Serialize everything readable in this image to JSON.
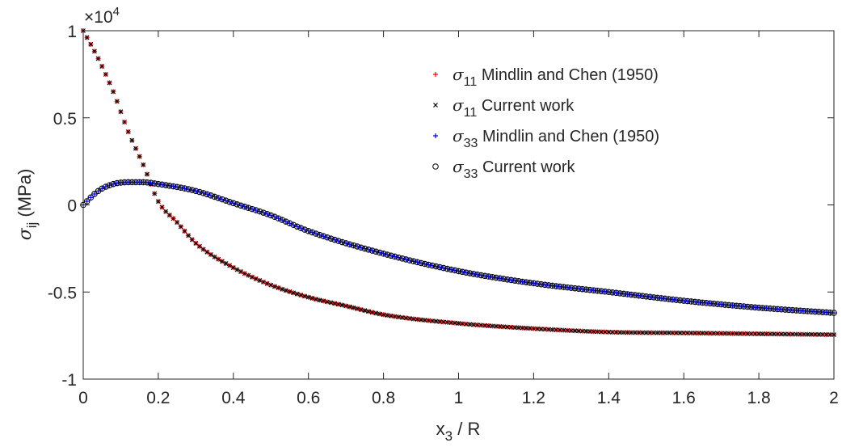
{
  "chart_data": {
    "type": "scatter",
    "xlabel": {
      "main": "x",
      "sub": "3",
      "rest": " / R"
    },
    "ylabel": {
      "main": "σ",
      "sub": "ij",
      "rest": " (MPa)"
    },
    "exponent": {
      "base": "×10",
      "power": "4"
    },
    "xlim": [
      0,
      2
    ],
    "ylim": [
      -10000,
      10000
    ],
    "xticks": [
      0,
      0.2,
      0.4,
      0.6,
      0.8,
      1,
      1.2,
      1.4,
      1.6,
      1.8,
      2
    ],
    "xtick_labels": [
      "0",
      "0.2",
      "0.4",
      "0.6",
      "0.8",
      "1",
      "1.2",
      "1.4",
      "1.6",
      "1.8",
      "2"
    ],
    "yticks": [
      -10000,
      -5000,
      0,
      5000,
      10000
    ],
    "ytick_labels": [
      "-1",
      "-0.5",
      "0",
      "0.5",
      "1"
    ],
    "grid": false,
    "legend_position": "top-right",
    "series": [
      {
        "name": {
          "sym": "σ",
          "sub": "11",
          "text": " Mindlin and Chen (1950)"
        },
        "marker": "plus",
        "color": "#ff0000",
        "anchors": [
          [
            0.0,
            10000
          ],
          [
            0.04,
            8400
          ],
          [
            0.08,
            6500
          ],
          [
            0.12,
            4200
          ],
          [
            0.16,
            2300
          ],
          [
            0.2,
            200
          ],
          [
            0.25,
            -1000
          ],
          [
            0.3,
            -2200
          ],
          [
            0.4,
            -3600
          ],
          [
            0.5,
            -4600
          ],
          [
            0.6,
            -5300
          ],
          [
            0.7,
            -5800
          ],
          [
            0.8,
            -6300
          ],
          [
            1.0,
            -6800
          ],
          [
            1.2,
            -7100
          ],
          [
            1.4,
            -7300
          ],
          [
            1.6,
            -7350
          ],
          [
            1.8,
            -7400
          ],
          [
            2.0,
            -7450
          ]
        ]
      },
      {
        "name": {
          "sym": "σ",
          "sub": "11",
          "text": " Current work"
        },
        "marker": "x",
        "color": "#000000",
        "anchors": [
          [
            0.0,
            10000
          ],
          [
            0.04,
            8400
          ],
          [
            0.08,
            6500
          ],
          [
            0.12,
            4200
          ],
          [
            0.16,
            2300
          ],
          [
            0.2,
            200
          ],
          [
            0.25,
            -1000
          ],
          [
            0.3,
            -2200
          ],
          [
            0.4,
            -3600
          ],
          [
            0.5,
            -4600
          ],
          [
            0.6,
            -5300
          ],
          [
            0.7,
            -5800
          ],
          [
            0.8,
            -6300
          ],
          [
            1.0,
            -6800
          ],
          [
            1.2,
            -7100
          ],
          [
            1.4,
            -7300
          ],
          [
            1.6,
            -7350
          ],
          [
            1.8,
            -7400
          ],
          [
            2.0,
            -7450
          ]
        ]
      },
      {
        "name": {
          "sym": "σ",
          "sub": "33",
          "text": " Mindlin and Chen (1950)"
        },
        "marker": "plus",
        "color": "#0000ff",
        "anchors": [
          [
            0.0,
            0
          ],
          [
            0.04,
            800
          ],
          [
            0.08,
            1200
          ],
          [
            0.12,
            1300
          ],
          [
            0.16,
            1300
          ],
          [
            0.2,
            1200
          ],
          [
            0.3,
            800
          ],
          [
            0.4,
            100
          ],
          [
            0.5,
            -600
          ],
          [
            0.6,
            -1500
          ],
          [
            0.8,
            -2800
          ],
          [
            1.0,
            -3800
          ],
          [
            1.2,
            -4500
          ],
          [
            1.4,
            -5000
          ],
          [
            1.6,
            -5500
          ],
          [
            1.8,
            -5900
          ],
          [
            2.0,
            -6200
          ]
        ]
      },
      {
        "name": {
          "sym": "σ",
          "sub": "33",
          "text": " Current work"
        },
        "marker": "circle",
        "color": "#000000",
        "anchors": [
          [
            0.0,
            0
          ],
          [
            0.04,
            800
          ],
          [
            0.08,
            1200
          ],
          [
            0.12,
            1300
          ],
          [
            0.16,
            1300
          ],
          [
            0.2,
            1200
          ],
          [
            0.3,
            800
          ],
          [
            0.4,
            100
          ],
          [
            0.5,
            -600
          ],
          [
            0.6,
            -1500
          ],
          [
            0.8,
            -2800
          ],
          [
            1.0,
            -3800
          ],
          [
            1.2,
            -4500
          ],
          [
            1.4,
            -5000
          ],
          [
            1.6,
            -5500
          ],
          [
            1.8,
            -5900
          ],
          [
            2.0,
            -6200
          ]
        ]
      }
    ]
  }
}
